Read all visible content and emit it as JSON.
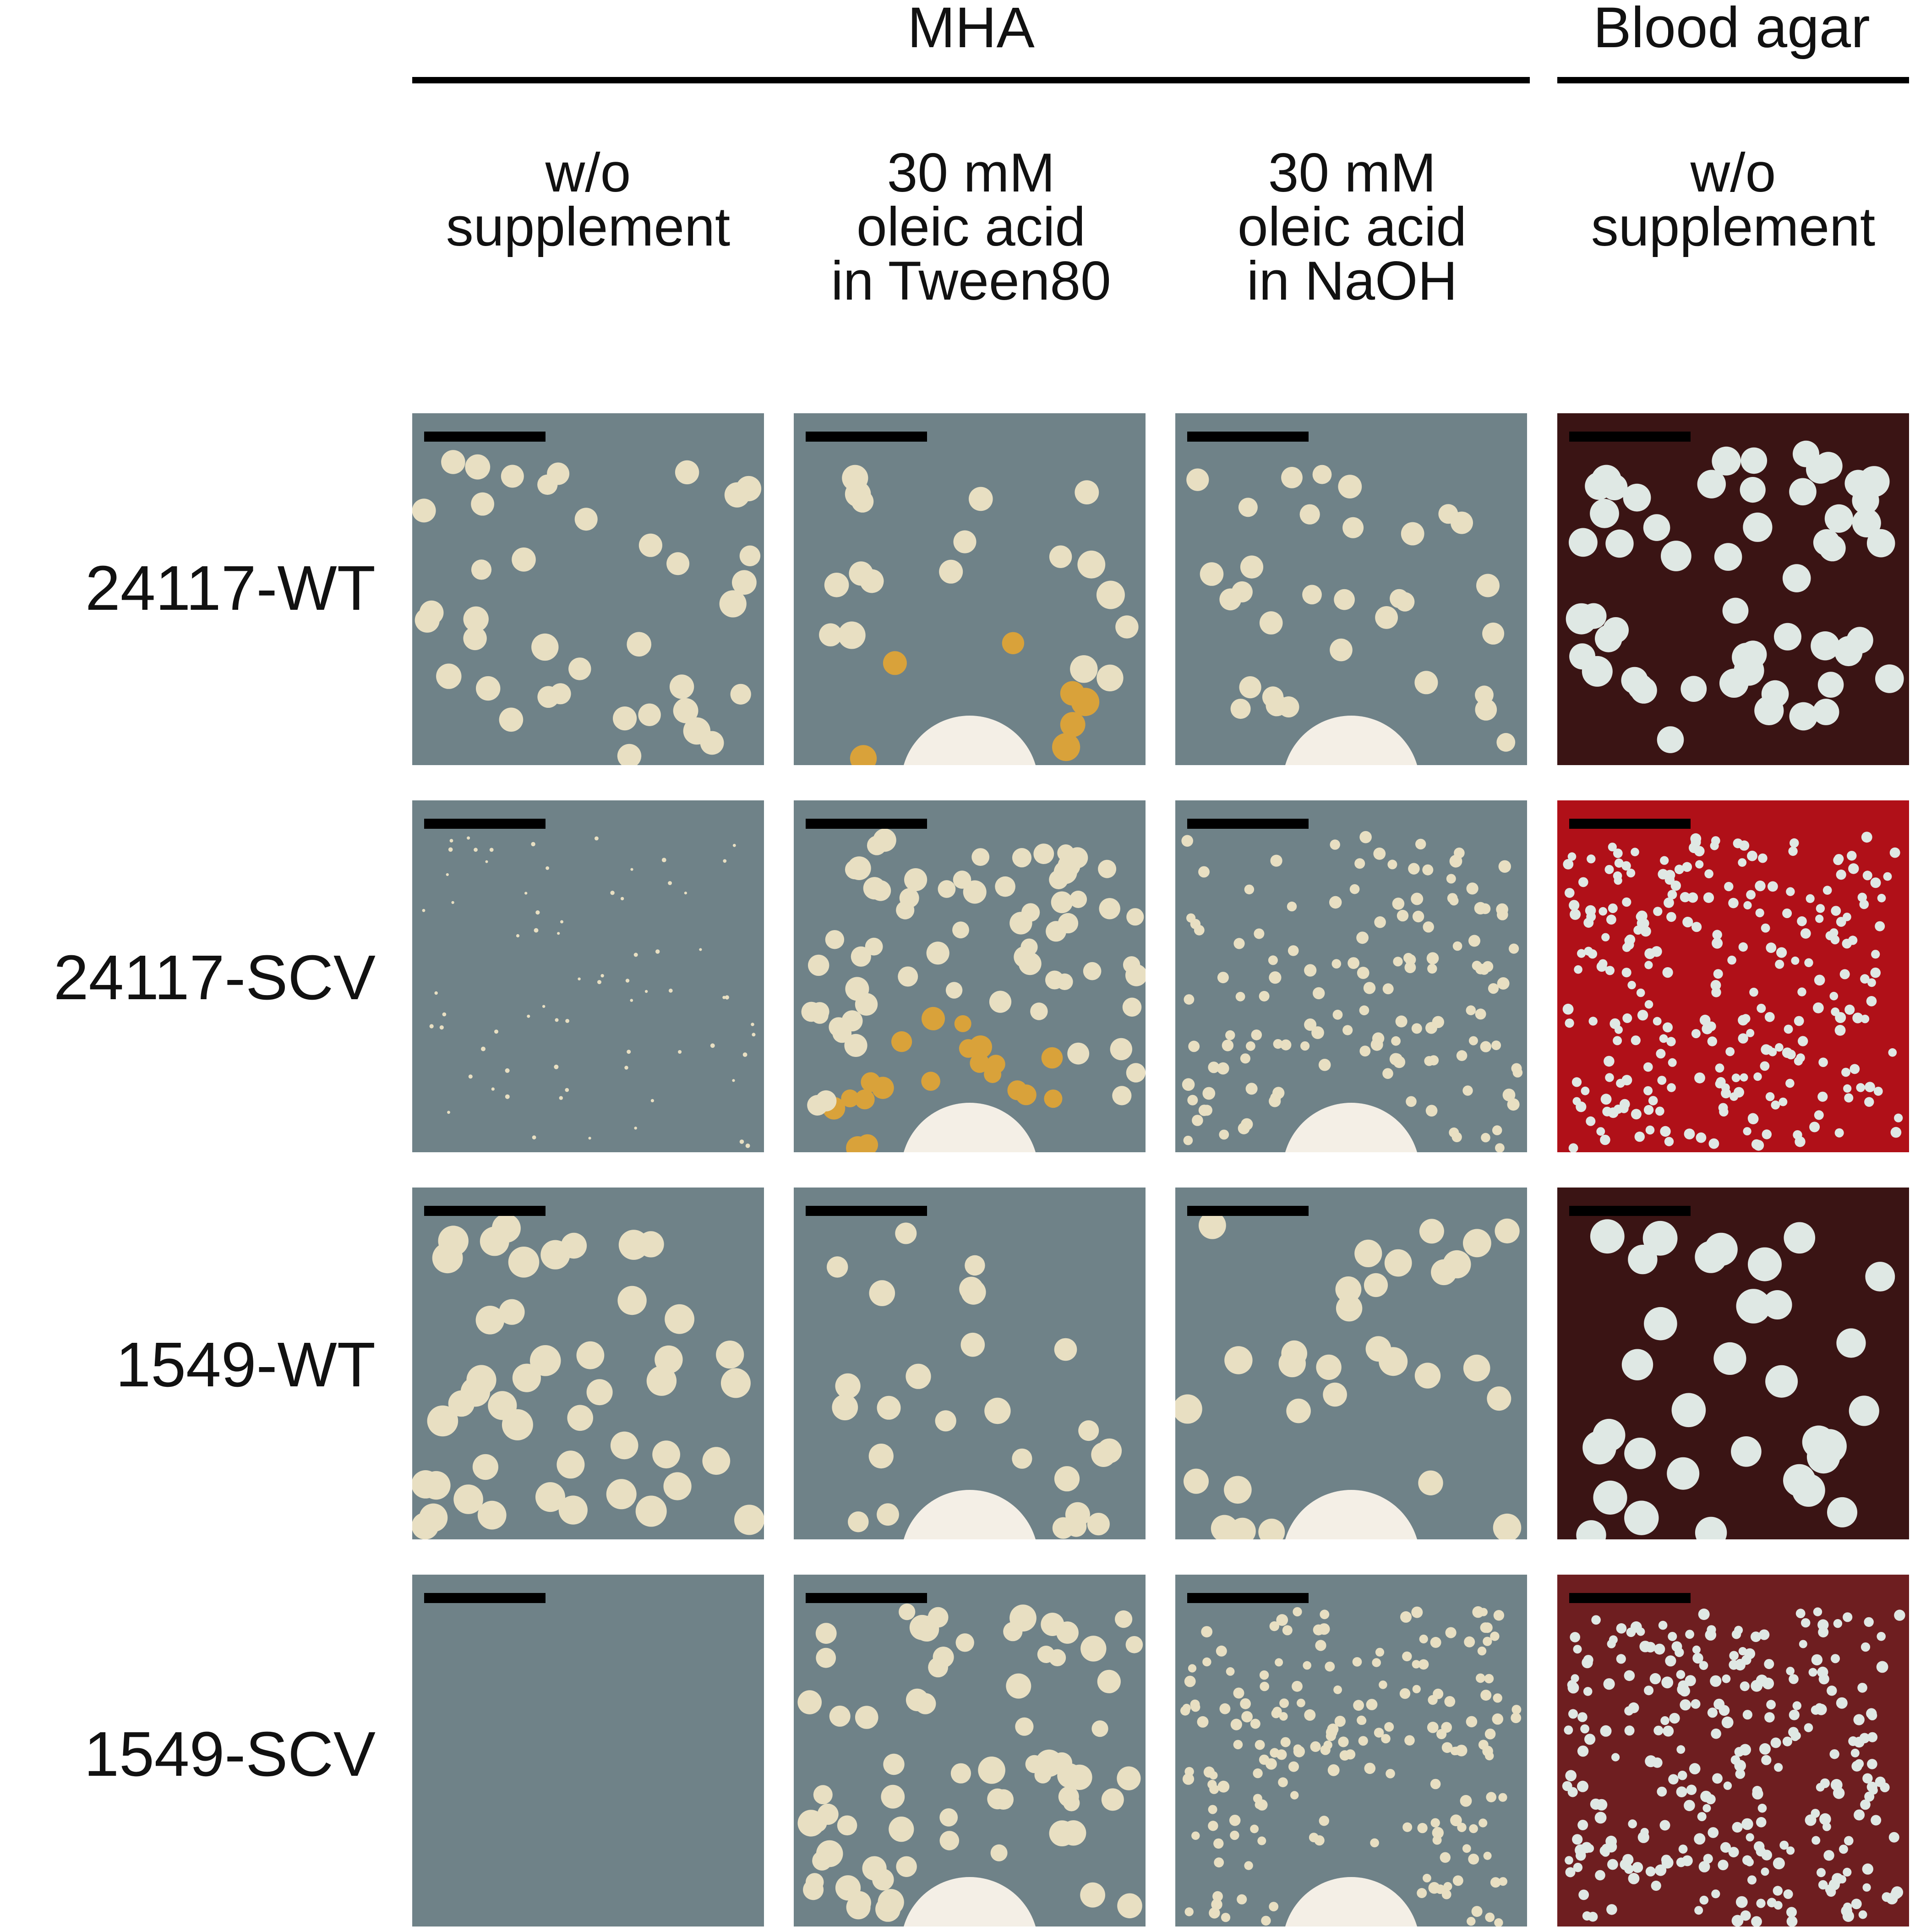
{
  "groups": [
    {
      "label": "MHA"
    },
    {
      "label": "Blood agar"
    }
  ],
  "columns": [
    {
      "lines": [
        "w/o",
        "supplement"
      ]
    },
    {
      "lines": [
        "30 mM",
        "oleic acid",
        "in Tween80"
      ]
    },
    {
      "lines": [
        "30 mM",
        "oleic acid",
        "in NaOH"
      ]
    },
    {
      "lines": [
        "w/o",
        "supplement"
      ]
    }
  ],
  "rows": [
    {
      "label": "24117-WT"
    },
    {
      "label": "24117-SCV"
    },
    {
      "label": "1549-WT"
    },
    {
      "label": "1549-SCV"
    }
  ],
  "colors": {
    "mha_background": "#6f8288",
    "blood_dark": "#3a1414",
    "blood_red": "#b01018",
    "blood_mid": "#6e1e20",
    "colony_mha": "#e8dfc2",
    "colony_blood": "#dfe8e4",
    "colony_oleic_yellow": "#d9a23a",
    "disk": "#f4efe6",
    "scale_bar": "#000000"
  }
}
